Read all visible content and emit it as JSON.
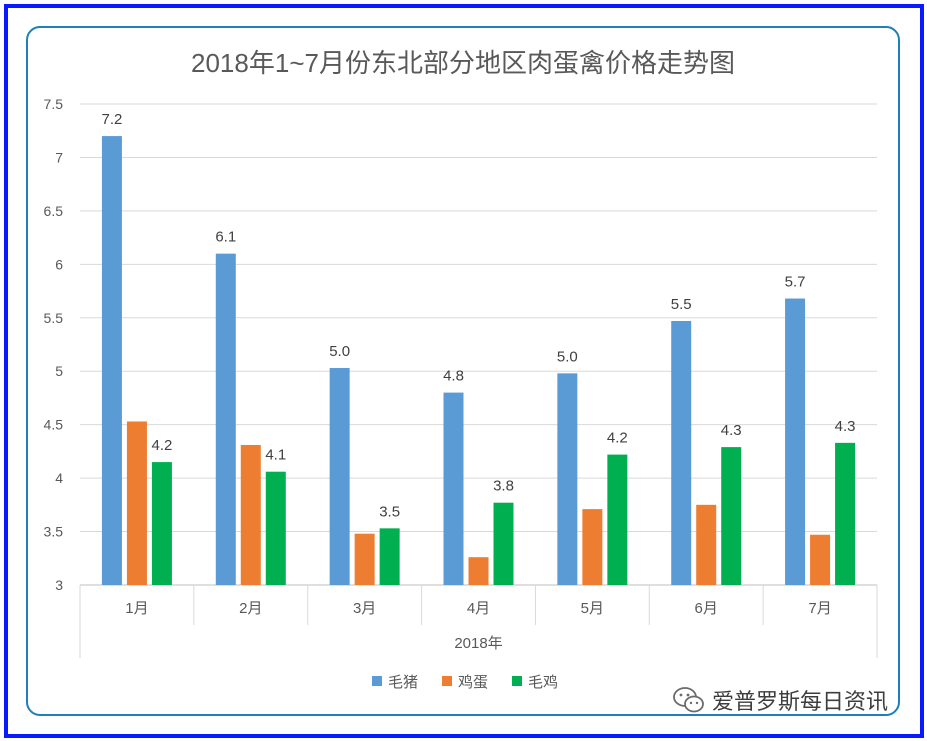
{
  "chart_data": {
    "type": "bar",
    "title": "2018年1~7月份东北部分地区肉蛋禽价格走势图",
    "categories": [
      "1月",
      "2月",
      "3月",
      "4月",
      "5月",
      "6月",
      "7月"
    ],
    "group_label": "2018年",
    "ylim": [
      3,
      7.5
    ],
    "yticks": [
      "3",
      "3.5",
      "4",
      "4.5",
      "5",
      "5.5",
      "6",
      "6.5",
      "7",
      "7.5"
    ],
    "grid": true,
    "legend_position": "bottom",
    "series": [
      {
        "name": "毛猪",
        "color": "#5b9bd5",
        "values": [
          7.2,
          6.1,
          5.03,
          4.8,
          4.98,
          5.47,
          5.68
        ],
        "labels": [
          "7.2",
          "6.1",
          "5.0",
          "4.8",
          "5.0",
          "5.5",
          "5.7"
        ]
      },
      {
        "name": "鸡蛋",
        "color": "#ed7d31",
        "values": [
          4.53,
          4.31,
          3.48,
          3.26,
          3.71,
          3.75,
          3.47
        ],
        "labels": [
          "",
          "",
          "",
          "",
          "",
          "",
          ""
        ]
      },
      {
        "name": "毛鸡",
        "color": "#00b050",
        "values": [
          4.15,
          4.06,
          3.53,
          3.77,
          4.22,
          4.29,
          4.33
        ],
        "labels": [
          "4.2",
          "4.1",
          "3.5",
          "3.8",
          "4.2",
          "4.3",
          "4.3"
        ]
      }
    ]
  },
  "watermark": {
    "text": "爱普罗斯每日资讯",
    "icon": "wechat-icon"
  }
}
